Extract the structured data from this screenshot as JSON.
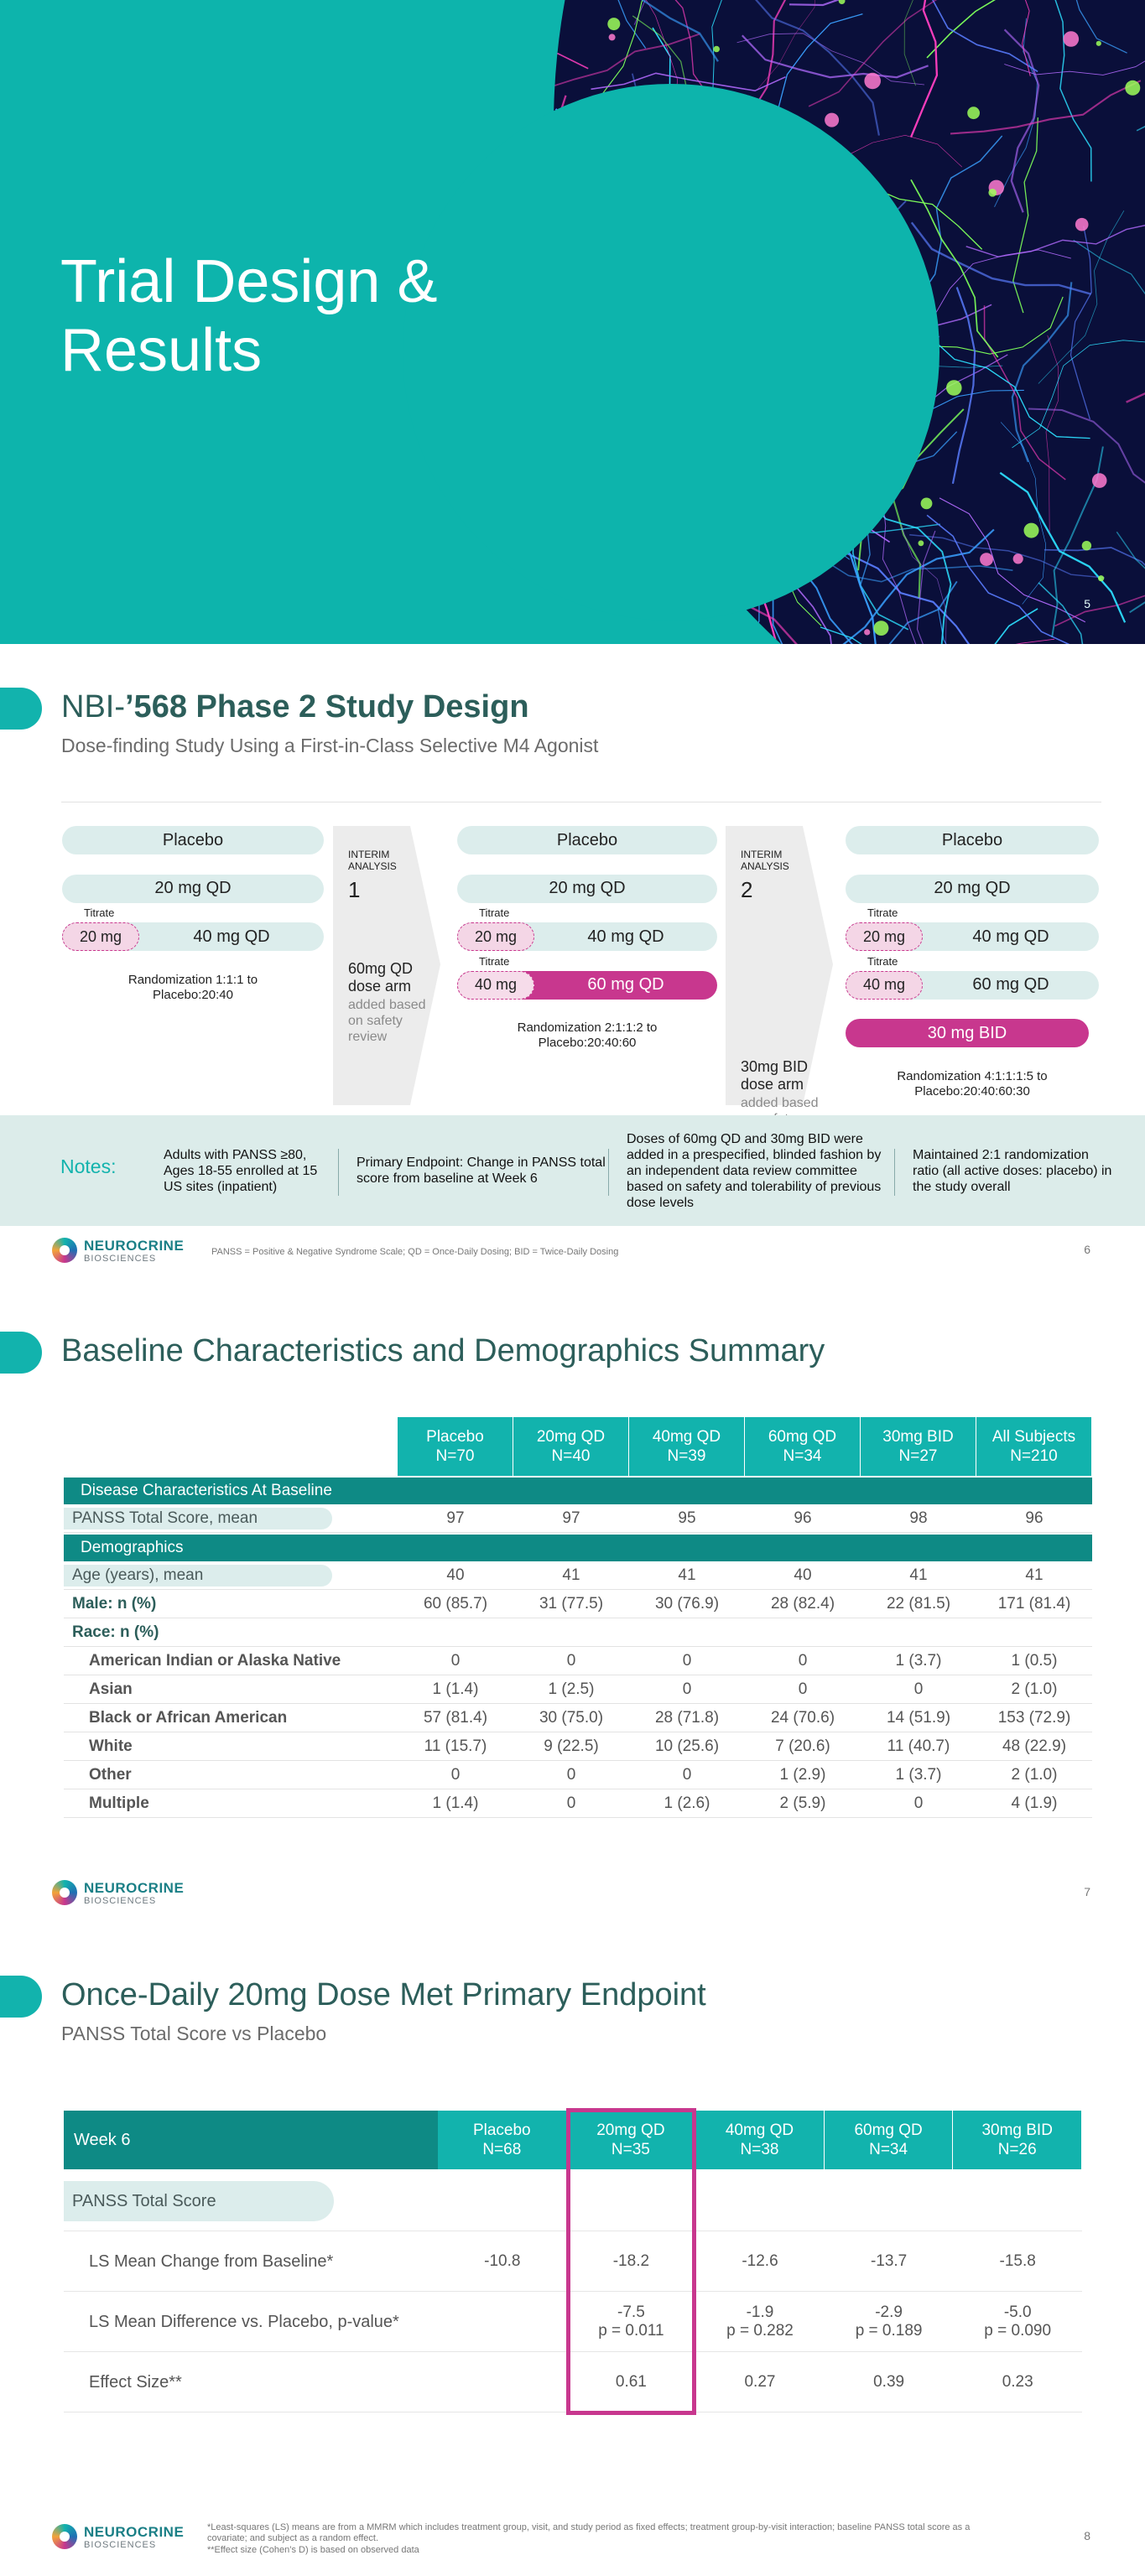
{
  "logo": {
    "name": "NEUROCRINE",
    "sub": "BIOSCIENCES"
  },
  "slide1": {
    "title": "Trial Design & Results",
    "page": "5"
  },
  "slide2": {
    "title_prefix": "NBI-",
    "title_bold": "’568 Phase 2 Study Design",
    "subtitle": "Dose-finding Study Using a First-in-Class Selective M4 Agonist",
    "stages": [
      {
        "rows": [
          {
            "to": "Placebo"
          },
          {
            "to": "20 mg QD"
          },
          {
            "titrate": "Titrate",
            "from": "20 mg",
            "to": "40 mg QD"
          }
        ],
        "randomization": "Randomization 1:1:1 to Placebo:20:40"
      },
      {
        "rows": [
          {
            "to": "Placebo"
          },
          {
            "to": "20 mg QD"
          },
          {
            "titrate": "Titrate",
            "from": "20 mg",
            "to": "40 mg QD"
          },
          {
            "titrate": "Titrate",
            "from": "40 mg",
            "to": "60 mg QD",
            "highlight": true
          }
        ],
        "randomization": "Randomization 2:1:1:2 to Placebo:20:40:60"
      },
      {
        "rows": [
          {
            "to": "Placebo"
          },
          {
            "to": "20 mg QD"
          },
          {
            "titrate": "Titrate",
            "from": "20 mg",
            "to": "40 mg QD"
          },
          {
            "titrate": "Titrate",
            "from": "40 mg",
            "to": "60 mg QD"
          },
          {
            "to": "30 mg BID",
            "highlight": true
          }
        ],
        "randomization": "Randomization 4:1:1:1:5 to Placebo:20:40:60:30"
      }
    ],
    "interims": [
      {
        "label": "INTERIM ANALYSIS",
        "number": "1",
        "arm": "60mg QD dose arm",
        "note": "added based on safety review"
      },
      {
        "label": "INTERIM ANALYSIS",
        "number": "2",
        "arm": "30mg BID dose arm",
        "note": "added based on safety review"
      }
    ],
    "notes_label": "Notes:",
    "notes": [
      "Adults with PANSS ≥80, Ages 18-55 enrolled at 15 US sites (inpatient)",
      "Primary Endpoint: Change in PANSS total score from baseline at Week 6",
      "Doses of 60mg QD and 30mg BID were added in a prespecified, blinded fashion by an independent data review committee based on safety and tolerability of previous dose levels",
      "Maintained 2:1 randomization ratio (all active doses: placebo) in the study overall"
    ],
    "footnote": "PANSS = Positive & Negative Syndrome Scale; QD = Once-Daily Dosing; BID = Twice-Daily Dosing",
    "page": "6"
  },
  "slide3": {
    "title": "Baseline Characteristics and Demographics Summary",
    "columns": [
      {
        "name": "Placebo",
        "n": "N=70"
      },
      {
        "name": "20mg QD",
        "n": "N=40"
      },
      {
        "name": "40mg QD",
        "n": "N=39"
      },
      {
        "name": "60mg QD",
        "n": "N=34"
      },
      {
        "name": "30mg BID",
        "n": "N=27"
      },
      {
        "name": "All Subjects",
        "n": "N=210"
      }
    ],
    "rows": [
      {
        "label": "Disease Characteristics At Baseline",
        "style": "section"
      },
      {
        "label": "PANSS Total Score, mean",
        "style": "pill",
        "cells": [
          "97",
          "97",
          "95",
          "96",
          "98",
          "96"
        ]
      },
      {
        "label": "Demographics",
        "style": "section"
      },
      {
        "label": "Age (years), mean",
        "style": "pill",
        "cells": [
          "40",
          "41",
          "41",
          "40",
          "41",
          "41"
        ]
      },
      {
        "label": "Male: n (%)",
        "style": "bold",
        "cells": [
          "60 (85.7)",
          "31 (77.5)",
          "30 (76.9)",
          "28 (82.4)",
          "22 (81.5)",
          "171 (81.4)"
        ]
      },
      {
        "label": "Race: n (%)",
        "style": "bold"
      },
      {
        "label": "American Indian or Alaska Native",
        "style": "indent",
        "cells": [
          "0",
          "0",
          "0",
          "0",
          "1 (3.7)",
          "1 (0.5)"
        ]
      },
      {
        "label": "Asian",
        "style": "indent",
        "cells": [
          "1 (1.4)",
          "1 (2.5)",
          "0",
          "0",
          "0",
          "2 (1.0)"
        ]
      },
      {
        "label": "Black or African American",
        "style": "indent",
        "cells": [
          "57 (81.4)",
          "30 (75.0)",
          "28 (71.8)",
          "24 (70.6)",
          "14 (51.9)",
          "153 (72.9)"
        ]
      },
      {
        "label": "White",
        "style": "indent",
        "cells": [
          "11 (15.7)",
          "9 (22.5)",
          "10 (25.6)",
          "7 (20.6)",
          "11 (40.7)",
          "48 (22.9)"
        ]
      },
      {
        "label": "Other",
        "style": "indent",
        "cells": [
          "0",
          "0",
          "0",
          "1 (2.9)",
          "1 (3.7)",
          "2 (1.0)"
        ]
      },
      {
        "label": "Multiple",
        "style": "indent",
        "cells": [
          "1 (1.4)",
          "0",
          "1 (2.6)",
          "2 (5.9)",
          "0",
          "4 (1.9)"
        ]
      }
    ],
    "page": "7"
  },
  "slide4": {
    "title": "Once-Daily 20mg Dose Met Primary Endpoint",
    "subtitle": "PANSS Total Score vs Placebo",
    "corner": "Week 6",
    "columns": [
      {
        "name": "Placebo",
        "n": "N=68"
      },
      {
        "name": "20mg QD",
        "n": "N=35",
        "highlight": true
      },
      {
        "name": "40mg QD",
        "n": "N=38"
      },
      {
        "name": "60mg QD",
        "n": "N=34"
      },
      {
        "name": "30mg BID",
        "n": "N=26"
      }
    ],
    "rows": [
      {
        "label": "PANSS Total Score",
        "style": "pill"
      },
      {
        "label": "LS Mean Change from Baseline*",
        "cells": [
          [
            "-10.8"
          ],
          [
            "-18.2"
          ],
          [
            "-12.6"
          ],
          [
            "-13.7"
          ],
          [
            "-15.8"
          ]
        ]
      },
      {
        "label": "LS Mean Difference vs. Placebo, p-value*",
        "cells": [
          null,
          [
            "-7.5",
            "p = 0.011"
          ],
          [
            "-1.9",
            "p = 0.282"
          ],
          [
            "-2.9",
            "p = 0.189"
          ],
          [
            "-5.0",
            "p = 0.090"
          ]
        ]
      },
      {
        "label": "Effect Size**",
        "cells": [
          null,
          [
            "0.61"
          ],
          [
            "0.27"
          ],
          [
            "0.39"
          ],
          [
            "0.23"
          ]
        ]
      }
    ],
    "footnotes": [
      "*Least-squares (LS) means are from a MMRM which includes treatment group, visit, and study period as fixed effects; treatment group-by-visit interaction; baseline PANSS total score as a covariate; and subject as a random effect.",
      "**Effect size (Cohen’s D) is based on observed data"
    ],
    "page": "8"
  }
}
